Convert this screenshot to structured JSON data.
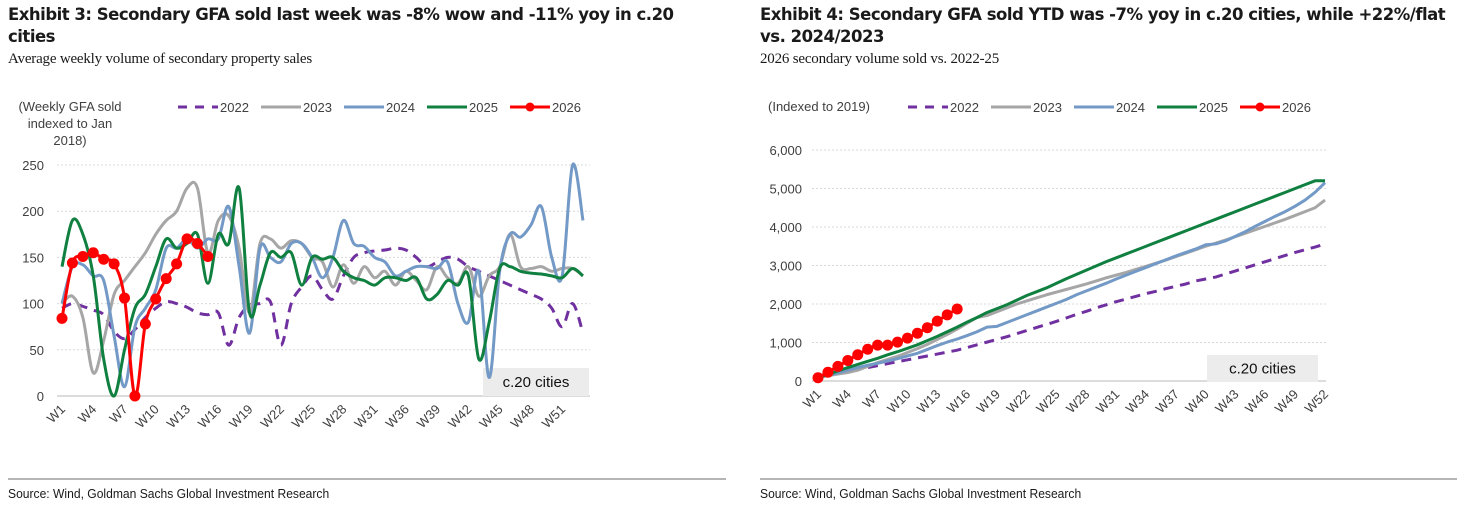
{
  "exhibits": [
    {
      "title": "Exhibit 3: Secondary GFA sold last week was -8% wow and -11% yoy in c.20 cities",
      "subtitle": "Average weekly volume of secondary property sales",
      "source": "Source: Wind, Goldman Sachs Global Investment Research"
    },
    {
      "title": "Exhibit 4: Secondary GFA sold YTD was -7% yoy in c.20 cities, while +22%/flat vs. 2024/2023",
      "subtitle": "2026 secondary volume sold vs. 2022-25",
      "source": "Source: Wind, Goldman Sachs Global Investment Research"
    }
  ],
  "colors": {
    "2022": "#7030a0",
    "2023": "#a6a6a6",
    "2024": "#7399c6",
    "2025": "#108040",
    "2026": "#ff0000",
    "grid": "#d9d9d9",
    "note_bg": "#ececec"
  },
  "chart_data": [
    {
      "type": "line",
      "title": "Exhibit 3: Secondary GFA sold last week was -8% wow and -11% yoy in c.20 cities",
      "ylabel": "(Weekly GFA sold indexed to Jan 2018)",
      "ylabel_lines": [
        "(Weekly GFA sold",
        "indexed to Jan",
        "2018)"
      ],
      "xlabel": "",
      "ylim": [
        0,
        250
      ],
      "yticks": [
        0,
        50,
        100,
        150,
        200,
        250
      ],
      "grid": true,
      "smooth": true,
      "legend_position": "top",
      "annotation": "c.20 cities",
      "x_tick_labels": [
        "W1",
        "W4",
        "W7",
        "W10",
        "W13",
        "W16",
        "W19",
        "W22",
        "W25",
        "W28",
        "W31",
        "W36",
        "W39",
        "W42",
        "W45",
        "W48",
        "W51"
      ],
      "x_tick_every": 3,
      "n_points": 51,
      "series": [
        {
          "name": "2022",
          "style": "dashed",
          "values": [
            95,
            100,
            97,
            93,
            88,
            70,
            62,
            72,
            85,
            95,
            102,
            100,
            96,
            90,
            88,
            90,
            55,
            85,
            98,
            100,
            102,
            55,
            100,
            118,
            130,
            115,
            105,
            130,
            150,
            155,
            157,
            158,
            160,
            158,
            150,
            140,
            145,
            150,
            148,
            140,
            135,
            130,
            125,
            120,
            115,
            110,
            105,
            95,
            75,
            100,
            68
          ]
        },
        {
          "name": "2023",
          "style": "solid",
          "values": [
            100,
            108,
            85,
            25,
            60,
            110,
            125,
            140,
            155,
            175,
            190,
            200,
            225,
            225,
            155,
            190,
            195,
            160,
            90,
            165,
            170,
            160,
            168,
            165,
            150,
            145,
            118,
            142,
            122,
            140,
            128,
            135,
            120,
            135,
            125,
            115,
            140,
            128,
            122,
            140,
            108,
            130,
            140,
            175,
            140,
            138,
            140,
            135,
            138,
            138,
            130
          ]
        },
        {
          "name": "2024",
          "style": "solid",
          "values": [
            100,
            140,
            142,
            130,
            125,
            65,
            10,
            75,
            95,
            115,
            160,
            160,
            170,
            160,
            170,
            170,
            205,
            140,
            68,
            160,
            150,
            145,
            165,
            165,
            150,
            128,
            150,
            190,
            165,
            162,
            150,
            145,
            130,
            135,
            140,
            140,
            138,
            145,
            100,
            80,
            135,
            20,
            135,
            175,
            172,
            185,
            205,
            150,
            130,
            250,
            190
          ]
        },
        {
          "name": "2025",
          "style": "solid",
          "values": [
            140,
            190,
            175,
            130,
            40,
            0,
            50,
            95,
            110,
            140,
            170,
            160,
            165,
            175,
            122,
            175,
            165,
            225,
            90,
            120,
            155,
            150,
            155,
            120,
            150,
            148,
            150,
            135,
            128,
            125,
            120,
            128,
            128,
            125,
            128,
            105,
            110,
            125,
            120,
            130,
            40,
            80,
            138,
            140,
            135,
            133,
            132,
            130,
            128,
            138,
            130
          ]
        },
        {
          "name": "2026",
          "style": "markers",
          "values": [
            84,
            144,
            151,
            155,
            148,
            143,
            106,
            0,
            78,
            105,
            127,
            143,
            170,
            165,
            151
          ]
        }
      ]
    },
    {
      "type": "line",
      "title": "Exhibit 4: Secondary GFA sold YTD was -7% yoy in c.20 cities, while +22%/flat vs. 2024/2023",
      "ylabel": "(Indexed to 2019)",
      "xlabel": "",
      "ylim": [
        0,
        6000
      ],
      "yticks": [
        0,
        1000,
        2000,
        3000,
        4000,
        5000,
        6000
      ],
      "ytick_labels": [
        "0",
        "1,000",
        "2,000",
        "3,000",
        "4,000",
        "5,000",
        "6,000"
      ],
      "grid": true,
      "legend_position": "top",
      "annotation": "c.20 cities",
      "x_tick_labels": [
        "W1",
        "W4",
        "W7",
        "W10",
        "W13",
        "W16",
        "W19",
        "W22",
        "W25",
        "W28",
        "W31",
        "W34",
        "W37",
        "W40",
        "W43",
        "W46",
        "W49",
        "W52"
      ],
      "x_tick_every": 3,
      "n_points": 52,
      "series": [
        {
          "name": "2022",
          "style": "dashed",
          "values": [
            90,
            150,
            200,
            250,
            300,
            350,
            400,
            450,
            500,
            550,
            600,
            650,
            700,
            750,
            800,
            870,
            940,
            1010,
            1080,
            1150,
            1230,
            1310,
            1390,
            1470,
            1550,
            1640,
            1730,
            1810,
            1900,
            1980,
            2060,
            2130,
            2200,
            2270,
            2330,
            2400,
            2460,
            2520,
            2600,
            2650,
            2700,
            2780,
            2860,
            2940,
            3020,
            3100,
            3180,
            3260,
            3340,
            3410,
            3480,
            3560
          ]
        },
        {
          "name": "2023",
          "style": "solid",
          "values": [
            90,
            140,
            180,
            220,
            280,
            380,
            480,
            560,
            640,
            740,
            840,
            950,
            1080,
            1210,
            1350,
            1500,
            1650,
            1700,
            1800,
            1900,
            2000,
            2080,
            2160,
            2240,
            2310,
            2380,
            2450,
            2520,
            2600,
            2680,
            2750,
            2820,
            2900,
            2980,
            3060,
            3140,
            3230,
            3320,
            3410,
            3500,
            3580,
            3660,
            3750,
            3840,
            3930,
            4020,
            4110,
            4200,
            4300,
            4400,
            4500,
            4700
          ]
        },
        {
          "name": "2024",
          "style": "solid",
          "values": [
            90,
            150,
            210,
            280,
            350,
            410,
            460,
            520,
            580,
            650,
            720,
            820,
            920,
            1010,
            1090,
            1180,
            1280,
            1400,
            1420,
            1520,
            1620,
            1720,
            1820,
            1920,
            2020,
            2120,
            2240,
            2340,
            2440,
            2540,
            2650,
            2750,
            2850,
            2950,
            3050,
            3150,
            3250,
            3340,
            3430,
            3540,
            3560,
            3640,
            3760,
            3880,
            4020,
            4150,
            4280,
            4400,
            4540,
            4700,
            4900,
            5150
          ]
        },
        {
          "name": "2025",
          "style": "solid",
          "values": [
            90,
            170,
            260,
            350,
            430,
            510,
            590,
            680,
            760,
            850,
            940,
            1050,
            1160,
            1280,
            1400,
            1530,
            1650,
            1780,
            1880,
            1980,
            2100,
            2220,
            2320,
            2420,
            2540,
            2660,
            2770,
            2880,
            2990,
            3100,
            3200,
            3300,
            3400,
            3500,
            3600,
            3700,
            3800,
            3900,
            4000,
            4100,
            4200,
            4300,
            4400,
            4500,
            4600,
            4700,
            4800,
            4900,
            5000,
            5100,
            5200,
            5200
          ]
        },
        {
          "name": "2026",
          "style": "markers",
          "values": [
            84,
            228,
            379,
            534,
            682,
            825,
            931,
            931,
            1009,
            1114,
            1241,
            1384,
            1554,
            1719,
            1870
          ]
        }
      ]
    }
  ]
}
